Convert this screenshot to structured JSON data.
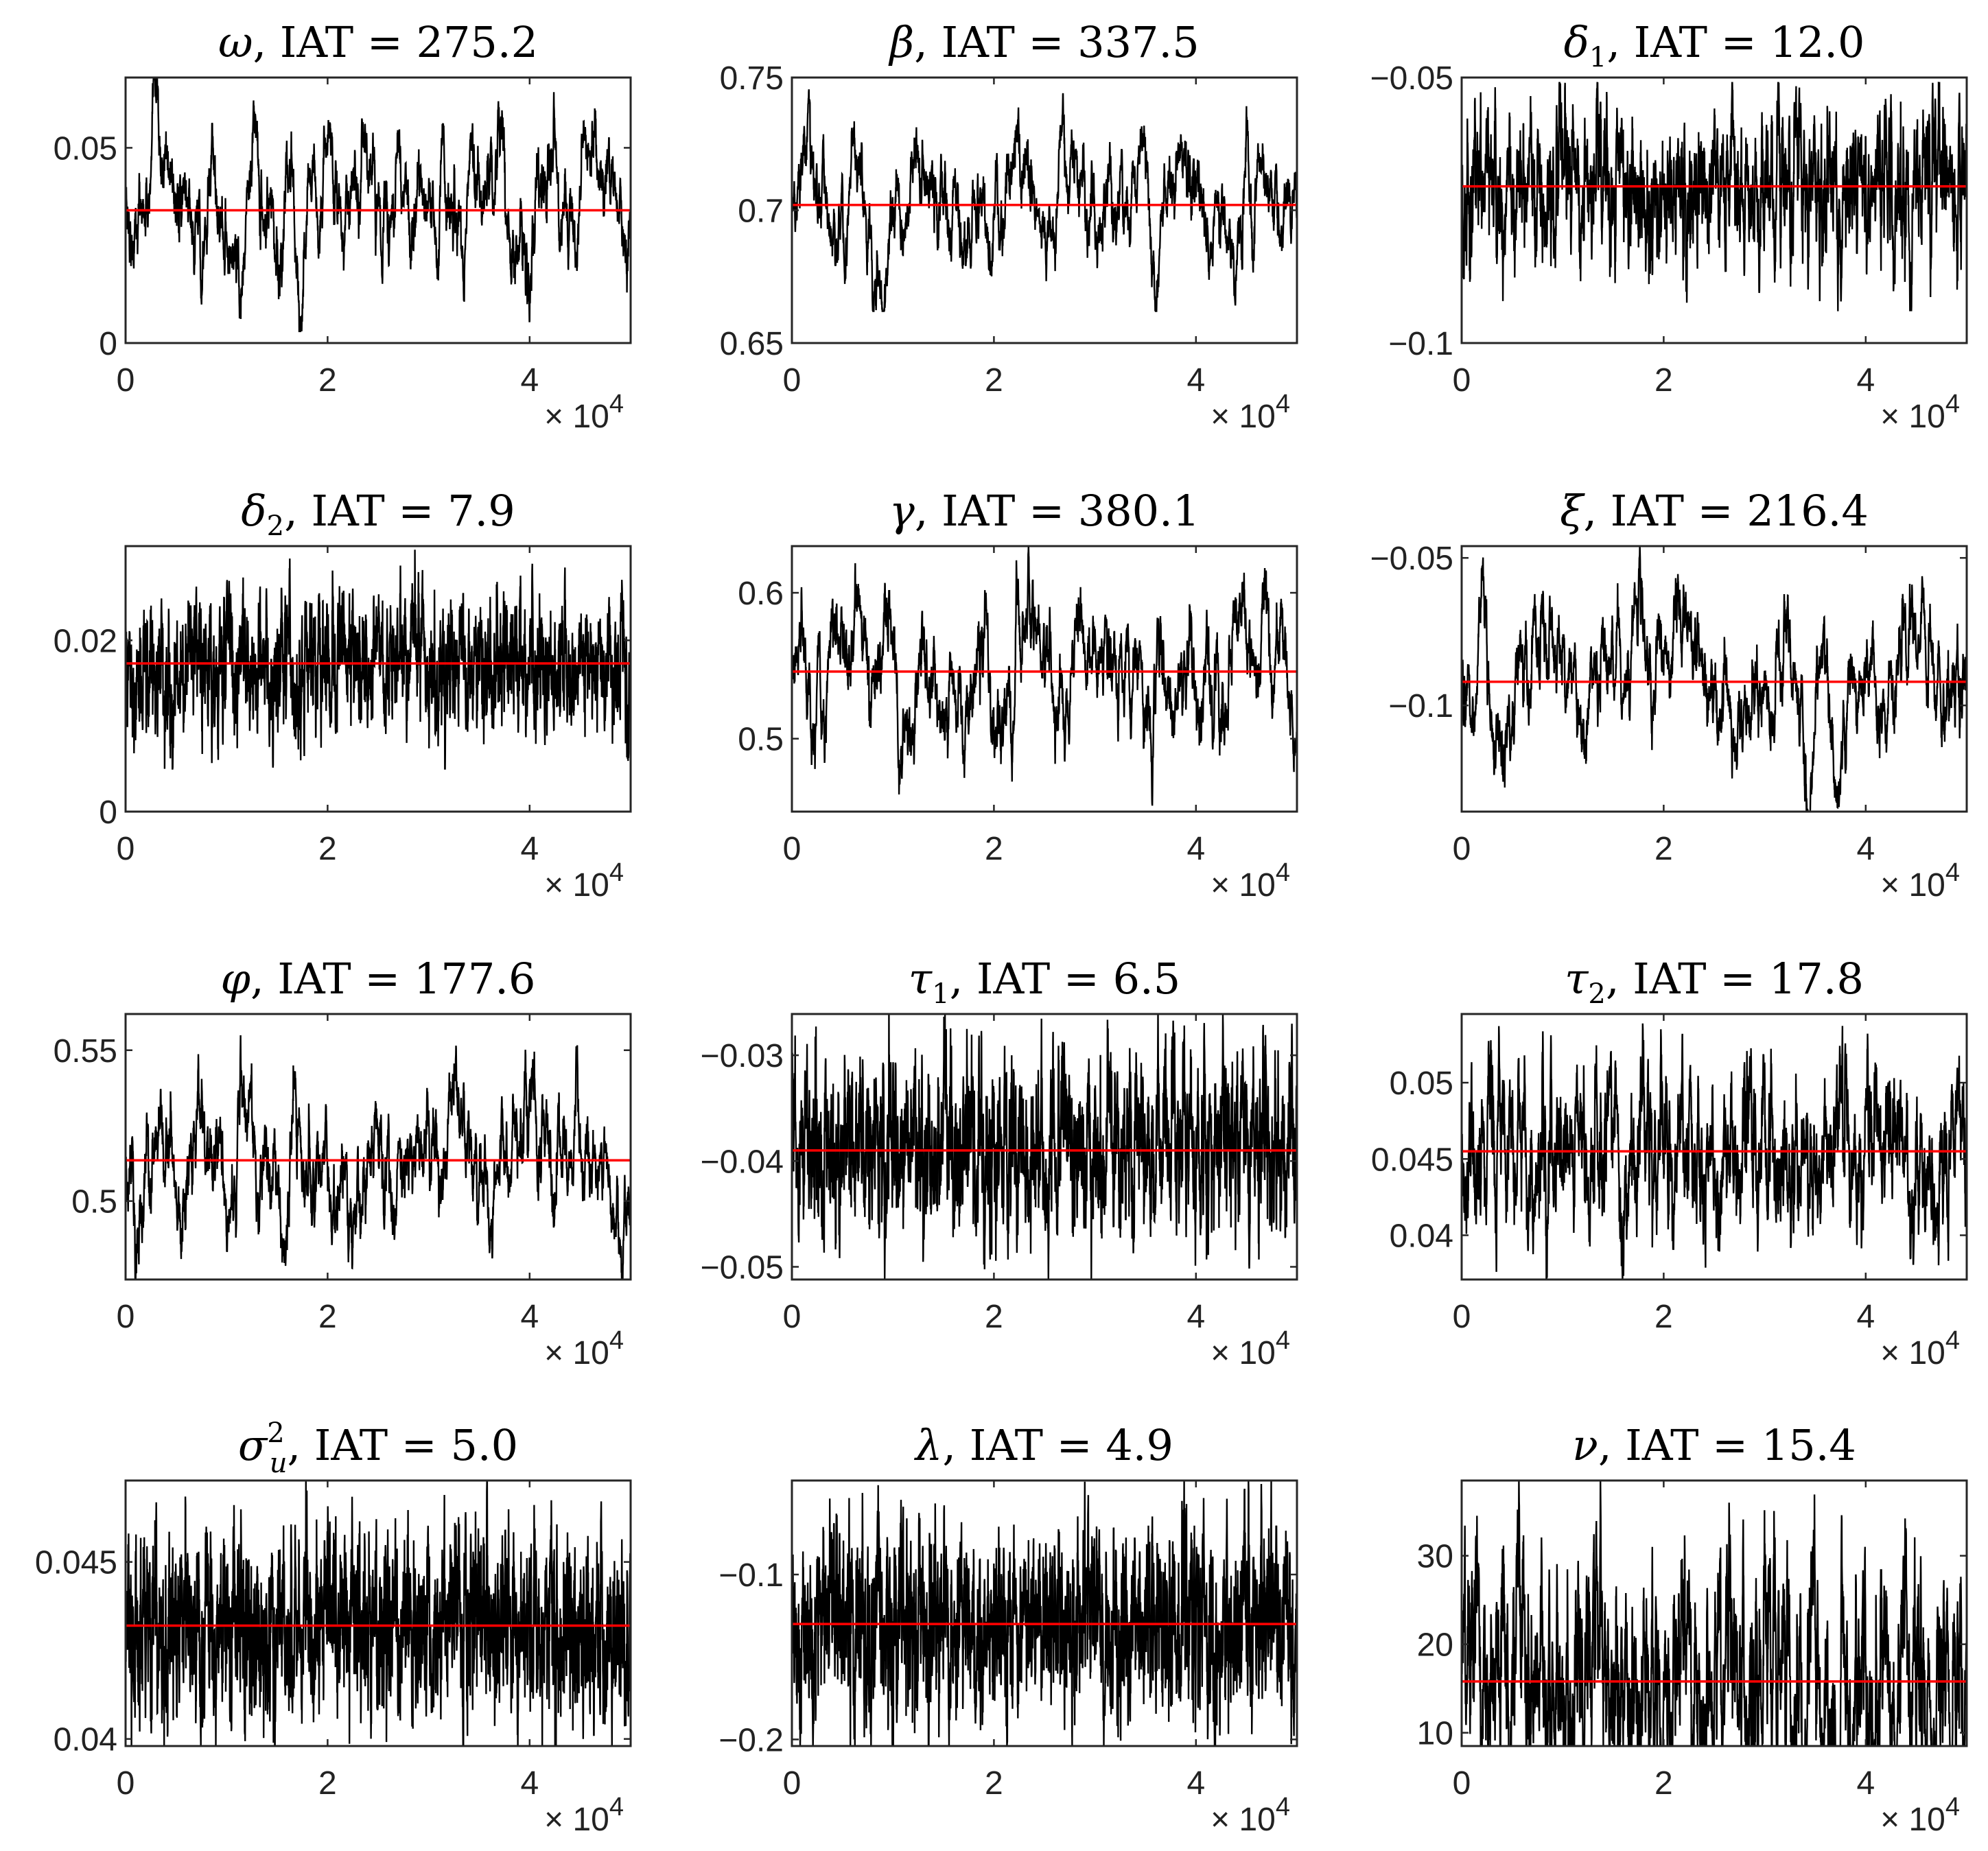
{
  "figure": {
    "line_color": "#000000",
    "mean_color": "#ff0000",
    "x_multiplier_label": "× 10",
    "x_multiplier_exponent": "4"
  },
  "chart_data": [
    {
      "type": "line",
      "title_symbol": "ω",
      "title_suffix": ", IAT = 275.2",
      "iat": 275.2,
      "xlim": [
        0,
        50000
      ],
      "xticks": [
        0,
        20000,
        40000
      ],
      "xtick_labels": [
        "0",
        "2",
        "4"
      ],
      "ylim": [
        0,
        0.068
      ],
      "yticks": [
        0,
        0.05
      ],
      "ytick_labels": [
        "0",
        "0.05"
      ],
      "mean": 0.034,
      "trace_range": [
        0.003,
        0.068
      ],
      "n_iterations": 50000
    },
    {
      "type": "line",
      "title_symbol": "β",
      "title_suffix": ", IAT = 337.5",
      "iat": 337.5,
      "xlim": [
        0,
        50000
      ],
      "xticks": [
        0,
        20000,
        40000
      ],
      "xtick_labels": [
        "0",
        "2",
        "4"
      ],
      "ylim": [
        0.65,
        0.75
      ],
      "yticks": [
        0.65,
        0.7,
        0.75
      ],
      "ytick_labels": [
        "0.65",
        "0.7",
        "0.75"
      ],
      "mean": 0.702,
      "trace_range": [
        0.662,
        0.748
      ],
      "n_iterations": 50000
    },
    {
      "type": "line",
      "title_symbol": "δ",
      "title_sub": "1",
      "title_suffix": ", IAT = 12.0",
      "iat": 12.0,
      "xlim": [
        0,
        50000
      ],
      "xticks": [
        0,
        20000,
        40000
      ],
      "xtick_labels": [
        "0",
        "2",
        "4"
      ],
      "ylim": [
        -0.1,
        -0.05
      ],
      "yticks": [
        -0.1,
        -0.05
      ],
      "ytick_labels": [
        "−0.1",
        "−0.05"
      ],
      "mean": -0.0705,
      "trace_range": [
        -0.094,
        -0.051
      ],
      "n_iterations": 50000
    },
    {
      "type": "line",
      "title_symbol": "δ",
      "title_sub": "2",
      "title_suffix": ", IAT = 7.9",
      "iat": 7.9,
      "xlim": [
        0,
        50000
      ],
      "xticks": [
        0,
        20000,
        40000
      ],
      "xtick_labels": [
        "0",
        "2",
        "4"
      ],
      "ylim": [
        0,
        0.031
      ],
      "yticks": [
        0,
        0.02
      ],
      "ytick_labels": [
        "0",
        "0.02"
      ],
      "mean": 0.0173,
      "trace_range": [
        0.005,
        0.031
      ],
      "n_iterations": 50000
    },
    {
      "type": "line",
      "title_symbol": "γ",
      "title_suffix": ", IAT = 380.1",
      "iat": 380.1,
      "xlim": [
        0,
        50000
      ],
      "xticks": [
        0,
        20000,
        40000
      ],
      "xtick_labels": [
        "0",
        "2",
        "4"
      ],
      "ylim": [
        0.45,
        0.632
      ],
      "yticks": [
        0.5,
        0.6
      ],
      "ytick_labels": [
        "0.5",
        "0.6"
      ],
      "mean": 0.546,
      "trace_range": [
        0.45,
        0.632
      ],
      "n_iterations": 50000
    },
    {
      "type": "line",
      "title_symbol": "ξ",
      "title_suffix": ", IAT = 216.4",
      "iat": 216.4,
      "xlim": [
        0,
        50000
      ],
      "xticks": [
        0,
        20000,
        40000
      ],
      "xtick_labels": [
        "0",
        "2",
        "4"
      ],
      "ylim": [
        -0.136,
        -0.046
      ],
      "yticks": [
        -0.1,
        -0.05
      ],
      "ytick_labels": [
        "−0.1",
        "−0.05"
      ],
      "mean": -0.092,
      "trace_range": [
        -0.136,
        -0.046
      ],
      "n_iterations": 50000
    },
    {
      "type": "line",
      "title_symbol": "φ",
      "title_suffix": ", IAT = 177.6",
      "iat": 177.6,
      "xlim": [
        0,
        50000
      ],
      "xticks": [
        0,
        20000,
        40000
      ],
      "xtick_labels": [
        "0",
        "2",
        "4"
      ],
      "ylim": [
        0.474,
        0.562
      ],
      "yticks": [
        0.5,
        0.55
      ],
      "ytick_labels": [
        "0.5",
        "0.55"
      ],
      "mean": 0.5135,
      "trace_range": [
        0.474,
        0.562
      ],
      "n_iterations": 50000
    },
    {
      "type": "line",
      "title_symbol": "τ",
      "title_sub": "1",
      "title_suffix": ", IAT = 6.5",
      "iat": 6.5,
      "xlim": [
        0,
        50000
      ],
      "xticks": [
        0,
        20000,
        40000
      ],
      "xtick_labels": [
        "0",
        "2",
        "4"
      ],
      "ylim": [
        -0.0512,
        -0.0261
      ],
      "yticks": [
        -0.05,
        -0.04,
        -0.03
      ],
      "ytick_labels": [
        "−0.05",
        "−0.04",
        "−0.03"
      ],
      "mean": -0.039,
      "trace_range": [
        -0.0512,
        -0.0261
      ],
      "n_iterations": 50000
    },
    {
      "type": "line",
      "title_symbol": "τ",
      "title_sub": "2",
      "title_suffix": ", IAT = 17.8",
      "iat": 17.8,
      "xlim": [
        0,
        50000
      ],
      "xticks": [
        0,
        20000,
        40000
      ],
      "xtick_labels": [
        "0",
        "2",
        "4"
      ],
      "ylim": [
        0.0371,
        0.0545
      ],
      "yticks": [
        0.04,
        0.045,
        0.05
      ],
      "ytick_labels": [
        "0.04",
        "0.045",
        "0.05"
      ],
      "mean": 0.0455,
      "trace_range": [
        0.0371,
        0.0545
      ],
      "n_iterations": 50000
    },
    {
      "type": "line",
      "title_symbol": "σ",
      "title_sub": "u",
      "title_sup": "2",
      "title_suffix": ", IAT = 5.0",
      "iat": 5.0,
      "xlim": [
        0,
        50000
      ],
      "xticks": [
        0,
        20000,
        40000
      ],
      "xtick_labels": [
        "0",
        "2",
        "4"
      ],
      "ylim": [
        0.0398,
        0.0473
      ],
      "yticks": [
        0.04,
        0.045
      ],
      "ytick_labels": [
        "0.04",
        "0.045"
      ],
      "mean": 0.0432,
      "trace_range": [
        0.0398,
        0.0473
      ],
      "n_iterations": 50000
    },
    {
      "type": "line",
      "title_symbol": "λ",
      "title_suffix": ", IAT = 4.9",
      "iat": 4.9,
      "xlim": [
        0,
        50000
      ],
      "xticks": [
        0,
        20000,
        40000
      ],
      "xtick_labels": [
        "0",
        "2",
        "4"
      ],
      "ylim": [
        -0.204,
        -0.043
      ],
      "yticks": [
        -0.2,
        -0.1
      ],
      "ytick_labels": [
        "−0.2",
        "−0.1"
      ],
      "mean": -0.13,
      "trace_range": [
        -0.204,
        -0.043
      ],
      "n_iterations": 50000
    },
    {
      "type": "line",
      "title_symbol": "ν",
      "title_suffix": ", IAT = 15.4",
      "iat": 15.4,
      "xlim": [
        0,
        50000
      ],
      "xticks": [
        0,
        20000,
        40000
      ],
      "xtick_labels": [
        "0",
        "2",
        "4"
      ],
      "ylim": [
        8.5,
        38.5
      ],
      "yticks": [
        10,
        20,
        30
      ],
      "ytick_labels": [
        "10",
        "20",
        "30"
      ],
      "mean": 15.8,
      "trace_range": [
        8.5,
        38.5
      ],
      "n_iterations": 50000
    }
  ]
}
